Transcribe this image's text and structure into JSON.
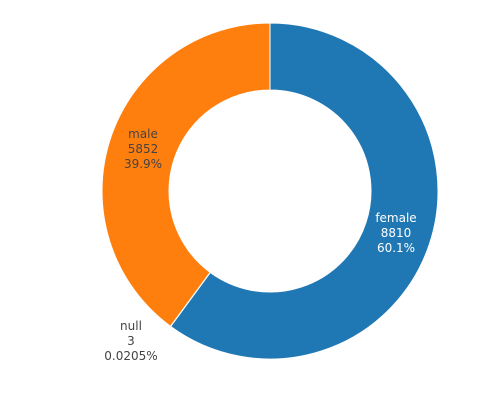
{
  "chart_data": {
    "type": "pie",
    "hole": true,
    "slices": [
      {
        "label": "female",
        "value": 8810,
        "percent": "60.1%",
        "color": "#1f77b4",
        "text_color": "#ffffff"
      },
      {
        "label": "null",
        "value": 3,
        "percent": "0.0205%",
        "color": "#2ca02c",
        "text_color": "#444444"
      },
      {
        "label": "male",
        "value": 5852,
        "percent": "39.9%",
        "color": "#ff7f0e",
        "text_color": "#444444"
      }
    ]
  }
}
